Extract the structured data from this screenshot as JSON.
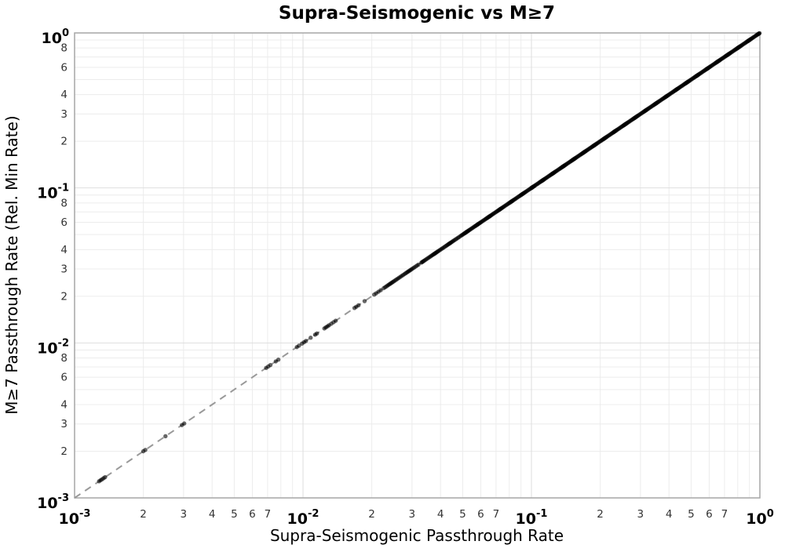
{
  "chart_data": {
    "type": "scatter",
    "title": "Supra-Seismogenic vs M≥7",
    "xlabel": "Supra-Seismogenic Passthrough Rate",
    "ylabel": "M≥7 Passthrough Rate (Rel. Min Rate)",
    "xscale": "log",
    "yscale": "log",
    "xlim": [
      0.001,
      1
    ],
    "ylim": [
      0.001,
      1
    ],
    "grid": true,
    "legend": "none",
    "major_tick_exponents": [
      -3,
      -2,
      -1,
      0
    ],
    "minor_tick_decades": [
      -3,
      -2,
      -1
    ],
    "x_minor_tick_digits": [
      2,
      3,
      4,
      5,
      6,
      7
    ],
    "y_minor_tick_digits": [
      8,
      6,
      4,
      3,
      2
    ],
    "reference_line": {
      "name": "one-to-one",
      "equation": "y = x",
      "style": "dashed",
      "color": "#999999",
      "width": 2,
      "from": [
        0.001,
        0.001
      ],
      "to": [
        1,
        1
      ]
    },
    "series": [
      {
        "name": "passthrough-points",
        "marker": "circle",
        "marker_radius": 2.7,
        "color": "#000000",
        "opacity": 0.6,
        "relation": "y = x (all points lie on the diagonal)",
        "x_sparse": [
          0.00128,
          0.0013,
          0.00132,
          0.00134,
          0.00136,
          0.002,
          0.00204,
          0.0025,
          0.00295,
          0.00302,
          0.0069,
          0.00705,
          0.0072,
          0.0076,
          0.0078,
          0.0094,
          0.0096,
          0.0099,
          0.0101,
          0.0103,
          0.0108,
          0.0113,
          0.0115,
          0.0124,
          0.0126,
          0.0128,
          0.013,
          0.0133,
          0.0136,
          0.0139,
          0.0168,
          0.0171,
          0.0175,
          0.0186,
          0.0205,
          0.0209,
          0.0214,
          0.0219
        ],
        "x_dense_segments": [
          {
            "from": 0.0225,
            "to": 0.032,
            "count": 30
          },
          {
            "from": 0.033,
            "to": 0.048,
            "count": 40
          },
          {
            "from": 0.049,
            "to": 0.1,
            "count": 95
          },
          {
            "from": 0.1,
            "to": 1.0,
            "count": 330
          }
        ]
      }
    ],
    "colors": {
      "background": "#ffffff",
      "grid_minor": "#ececec",
      "grid_major": "#dedede",
      "spine": "#a6a6a6",
      "major_tick_label": "#000000",
      "minor_tick_label": "#333333",
      "point": "#000000",
      "reference_line": "#999999"
    }
  }
}
